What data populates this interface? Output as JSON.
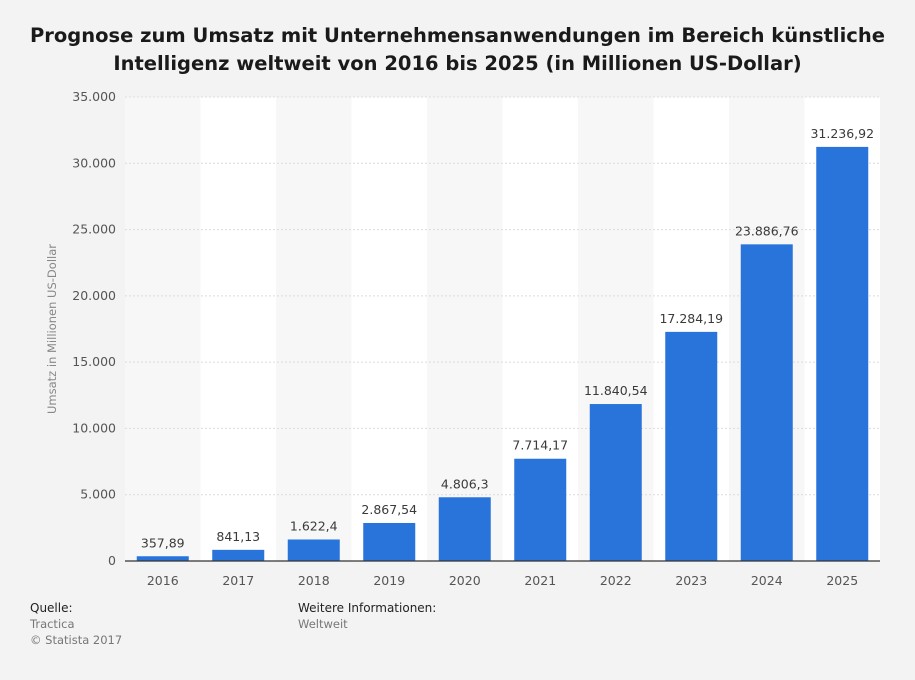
{
  "title_line1": "Prognose zum Umsatz mit Unternehmensanwendungen im Bereich künstliche",
  "title_line2": "Intelligenz weltweit von 2016 bis 2025 (in Millionen US-Dollar)",
  "footer": {
    "source_label": "Quelle:",
    "source_value": "Tractica",
    "copyright": "© Statista 2017",
    "info_label": "Weitere Informationen:",
    "info_value": "Weltweit"
  },
  "colors": {
    "bar": "#2874db",
    "band": "#ffffff",
    "band_alt": "#f7f7f7",
    "grid": "#dcdcdc"
  },
  "chart_data": {
    "type": "bar",
    "categories": [
      "2016",
      "2017",
      "2018",
      "2019",
      "2020",
      "2021",
      "2022",
      "2023",
      "2024",
      "2025"
    ],
    "values": [
      357.89,
      841.13,
      1622.4,
      2867.54,
      4806.3,
      7714.17,
      11840.54,
      17284.19,
      23886.76,
      31236.92
    ],
    "value_labels": [
      "357,89",
      "841,13",
      "1.622,4",
      "2.867,54",
      "4.806,3",
      "7.714,17",
      "11.840,54",
      "17.284,19",
      "23.886,76",
      "31.236,92"
    ],
    "ylabel": "Umsatz in Millionen US-Dollar",
    "ylim": [
      0,
      35000
    ],
    "yticks": [
      0,
      5000,
      10000,
      15000,
      20000,
      25000,
      30000,
      35000
    ],
    "ytick_labels": [
      "0",
      "5.000",
      "10.000",
      "15.000",
      "20.000",
      "25.000",
      "30.000",
      "35.000"
    ],
    "grid": true
  }
}
